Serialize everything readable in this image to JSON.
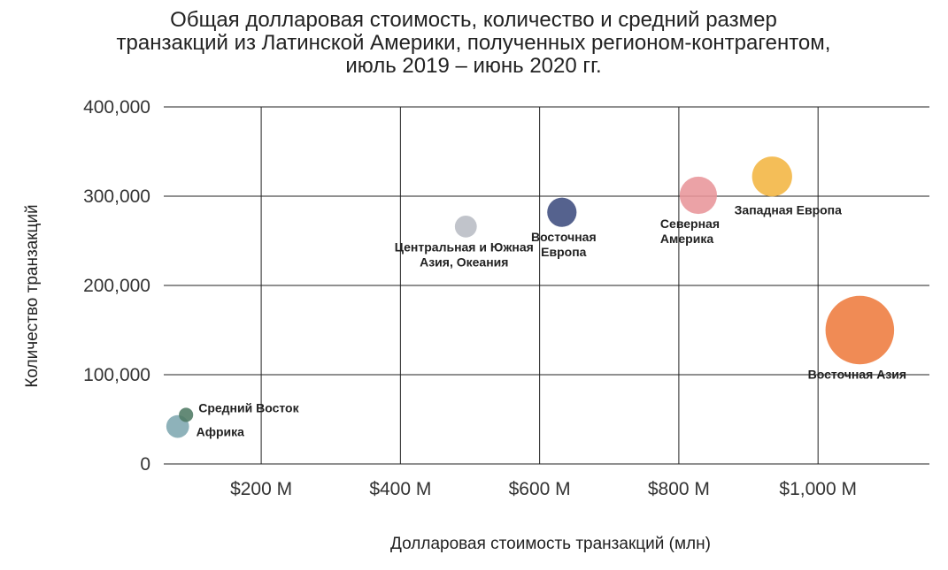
{
  "chart_data": {
    "type": "scatter",
    "variant": "bubble",
    "title": [
      "Общая долларовая стоимость, количество и средний размер",
      "транзакций из Латинской Америки, полученных регионом-контрагентом,",
      "июль 2019 – июнь 2020 гг."
    ],
    "xlabel": "Долларовая стоимость транзакций (млн)",
    "ylabel": "Количество транзакций",
    "xlim": [
      60,
      1160
    ],
    "ylim": [
      0,
      400000
    ],
    "x_ticks": [
      {
        "value": 200,
        "label": "$200 M"
      },
      {
        "value": 400,
        "label": "$400 M"
      },
      {
        "value": 600,
        "label": "$600 M"
      },
      {
        "value": 800,
        "label": "$800 M"
      },
      {
        "value": 1000,
        "label": "$1,000 M"
      }
    ],
    "y_ticks": [
      {
        "value": 0,
        "label": "0"
      },
      {
        "value": 100000,
        "label": "100,000"
      },
      {
        "value": 200000,
        "label": "200,000"
      },
      {
        "value": 300000,
        "label": "300,000"
      },
      {
        "value": 400000,
        "label": "400,000"
      }
    ],
    "grid": true,
    "legend": "none",
    "points": [
      {
        "name": "Африка",
        "label_lines": [
          "Африка"
        ],
        "x": 80,
        "y": 42000,
        "size": 8.3,
        "color": "#7ea7b0",
        "label_pos": "right-below"
      },
      {
        "name": "Средний Восток",
        "label_lines": [
          "Средний Восток"
        ],
        "x": 92,
        "y": 55000,
        "size": 5.2,
        "color": "#4e7a64",
        "label_pos": "right-above"
      },
      {
        "name": "Центральная и Южная Азия, Океания",
        "label_lines": [
          "Центральная и Южная",
          "Азия, Океания"
        ],
        "x": 494,
        "y": 266000,
        "size": 8.0,
        "color": "#b8bcc4",
        "label_pos": "below"
      },
      {
        "name": "Восточная Европа",
        "label_lines": [
          "Восточная",
          "Европа"
        ],
        "x": 632,
        "y": 282000,
        "size": 10.7,
        "color": "#3e4c7e",
        "label_pos": "below-right"
      },
      {
        "name": "Северная Америка",
        "label_lines": [
          "Северная",
          "Америка"
        ],
        "x": 828,
        "y": 301000,
        "size": 13.6,
        "color": "#e8959a",
        "label_pos": "below"
      },
      {
        "name": "Западная Европа",
        "label_lines": [
          "Западная Европа"
        ],
        "x": 934,
        "y": 322000,
        "size": 14.6,
        "color": "#f2b541",
        "label_pos": "below-right"
      },
      {
        "name": "Восточная Азия",
        "label_lines": [
          "Восточная Азия"
        ],
        "x": 1060,
        "y": 150000,
        "size": 25.0,
        "color": "#ee7b3d",
        "label_pos": "below"
      }
    ]
  }
}
